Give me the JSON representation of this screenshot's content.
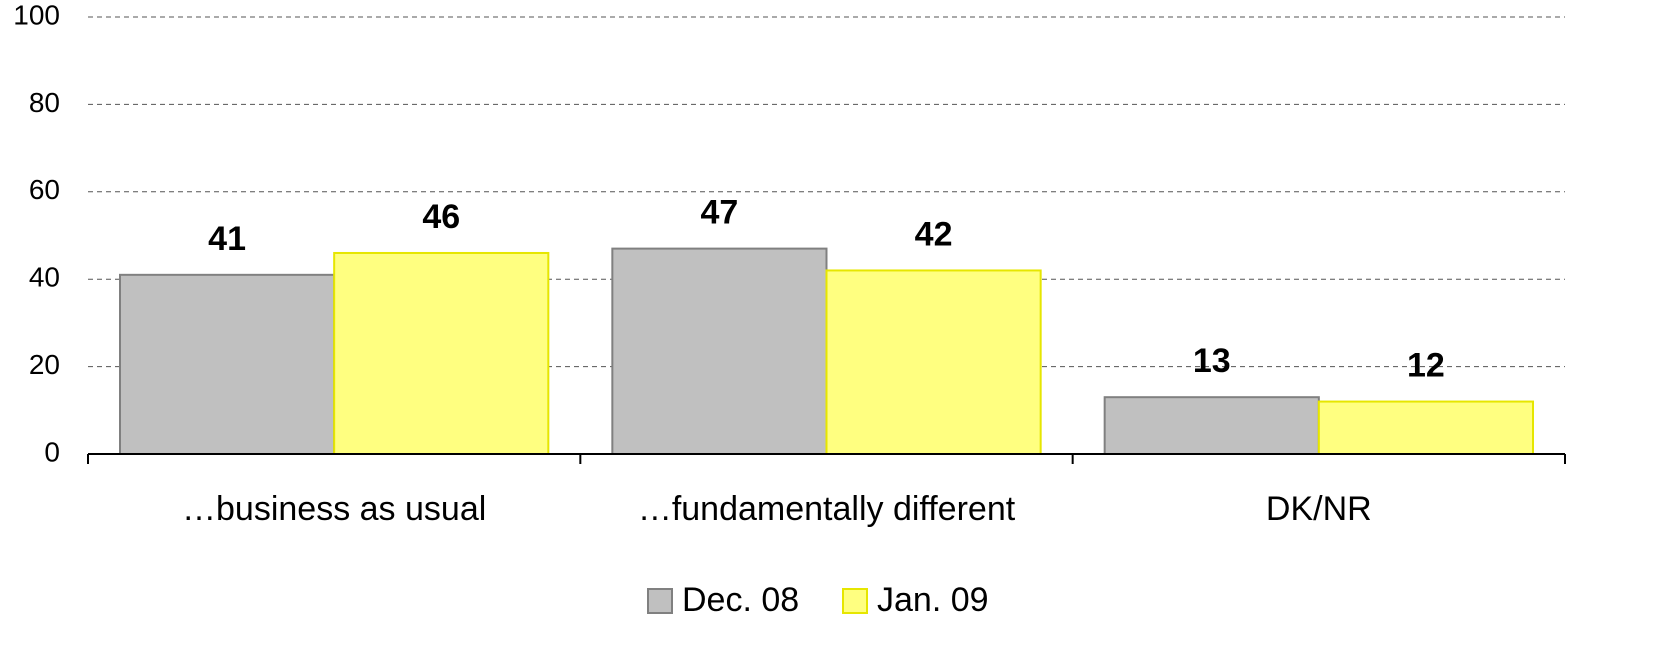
{
  "chart_data": {
    "type": "bar",
    "categories": [
      "…business as usual",
      "…fundamentally different",
      "DK/NR"
    ],
    "series": [
      {
        "name": "Dec. 08",
        "color": "#c0c0c0",
        "values": [
          41,
          47,
          13
        ]
      },
      {
        "name": "Jan. 09",
        "color": "#ffff80",
        "values": [
          46,
          42,
          12
        ]
      }
    ],
    "ylim": [
      0,
      100
    ],
    "yticks": [
      0,
      20,
      40,
      60,
      80,
      100
    ],
    "grid": true
  }
}
